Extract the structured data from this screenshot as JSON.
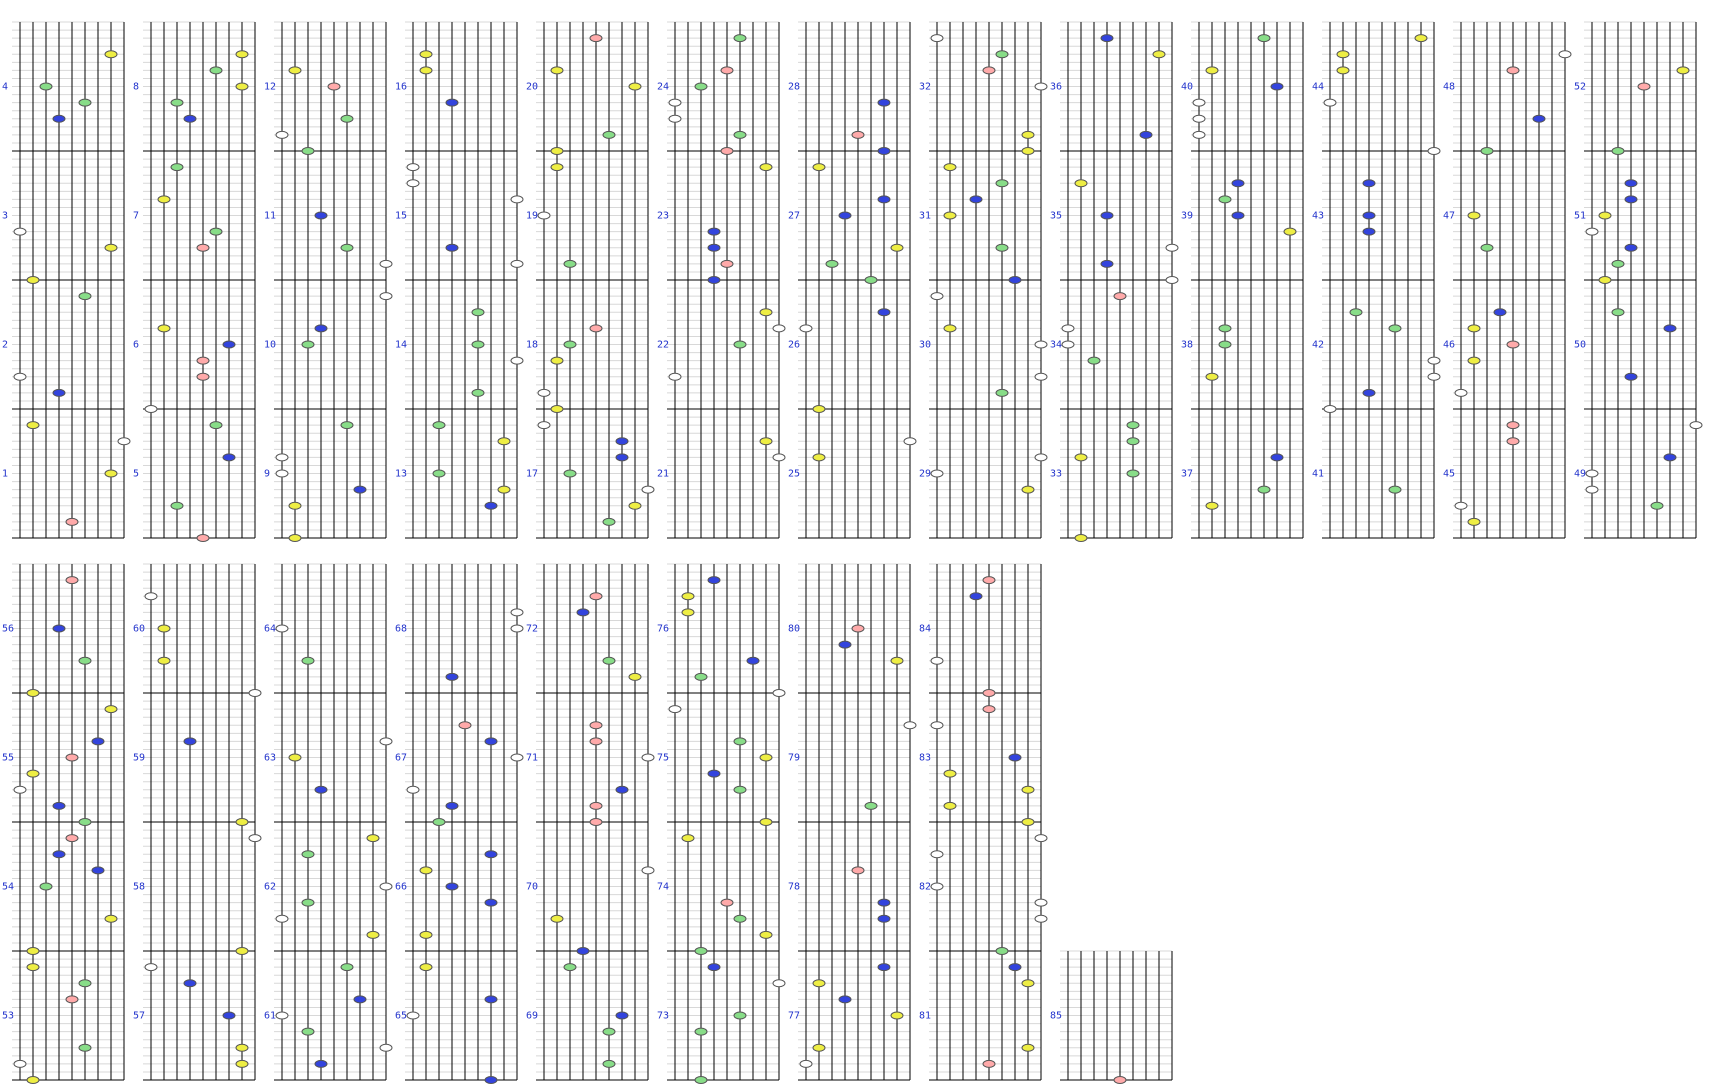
{
  "measures": [
    1,
    2,
    3,
    4,
    5,
    6,
    7,
    8,
    9,
    10,
    11,
    12,
    13,
    14,
    15,
    16,
    17,
    18,
    19,
    20,
    21,
    22,
    23,
    24,
    25,
    26,
    27,
    28,
    29,
    30,
    31,
    32,
    33,
    34,
    35,
    36,
    37,
    38,
    39,
    40,
    41,
    42,
    43,
    44,
    45,
    46,
    47,
    48,
    49,
    50,
    51,
    52,
    53,
    54,
    55,
    56,
    57,
    58,
    59,
    60,
    61,
    62,
    63,
    64,
    65,
    66,
    67,
    68,
    69,
    70,
    71,
    72,
    73,
    74,
    75,
    76,
    77,
    78,
    79,
    80,
    81,
    82,
    83,
    84,
    85
  ]
}
